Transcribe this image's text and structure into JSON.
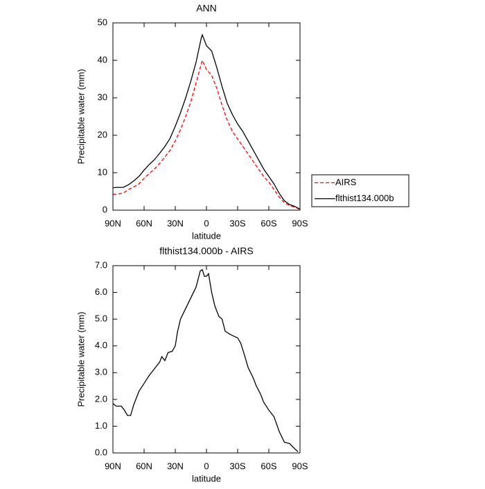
{
  "chart_data": [
    {
      "type": "line",
      "title": "ANN",
      "x_label": "latitude",
      "y_label": "Precipitable water (mm)",
      "x": [
        90,
        85,
        80,
        75,
        70,
        65,
        60,
        55,
        50,
        45,
        40,
        35,
        30,
        25,
        20,
        15,
        10,
        5,
        4,
        0,
        -5,
        -10,
        -15,
        -20,
        -25,
        -30,
        -35,
        -40,
        -45,
        -50,
        -55,
        -60,
        -65,
        -70,
        -75,
        -80,
        -85,
        -90
      ],
      "series": [
        {
          "name": "AIRS",
          "color": "#ff0000",
          "dash": true,
          "values": [
            4.2,
            4.3,
            4.6,
            5.5,
            6.2,
            7.0,
            8.5,
            9.8,
            11.0,
            12.5,
            14.2,
            16.0,
            18.5,
            21.5,
            25,
            29,
            34,
            39,
            40,
            37.5,
            36,
            32.5,
            28,
            24,
            21,
            19,
            17,
            15,
            13,
            11,
            9,
            7.5,
            5.5,
            3.5,
            2,
            1.2,
            0.8,
            0.2
          ]
        },
        {
          "name": "flthist134.000b",
          "color": "#000000",
          "dash": false,
          "values": [
            6.0,
            6.1,
            6.1,
            6.8,
            7.8,
            9.0,
            10.7,
            12.2,
            13.5,
            15.2,
            17.0,
            19.2,
            22.4,
            26,
            30,
            34.5,
            39.5,
            46,
            46.8,
            43.9,
            42.5,
            38,
            33,
            28.5,
            25.5,
            23,
            21,
            18.5,
            16,
            13.5,
            11,
            9,
            7,
            4.5,
            2.5,
            1.5,
            1.0,
            0.3
          ]
        }
      ],
      "xlim": [
        90,
        -90
      ],
      "xticks": [
        {
          "value": 90,
          "label": "90N"
        },
        {
          "value": 60,
          "label": "60N"
        },
        {
          "value": 30,
          "label": "30N"
        },
        0,
        {
          "value": -30,
          "label": "30S"
        },
        {
          "value": -60,
          "label": "60S"
        },
        {
          "value": -90,
          "label": "90S"
        }
      ],
      "ylim": [
        0,
        50
      ],
      "yticks": [
        0,
        10,
        20,
        30,
        40,
        50
      ],
      "legend": "right"
    },
    {
      "type": "line",
      "title": "flthist134.000b - AIRS",
      "x_label": "latitude",
      "y_label": "Precipitable water (mm)",
      "x": [
        90,
        87,
        82,
        79,
        76,
        73,
        70,
        65,
        60,
        55,
        50,
        45,
        43,
        40,
        37,
        33,
        30,
        28,
        25,
        20,
        15,
        10,
        6,
        4,
        2,
        0,
        -2,
        -5,
        -8,
        -12,
        -15,
        -18,
        -22,
        -27,
        -30,
        -33,
        -37,
        -40,
        -45,
        -48,
        -52,
        -55,
        -60,
        -65,
        -70,
        -75,
        -80,
        -85,
        -88
      ],
      "values": [
        1.85,
        1.75,
        1.75,
        1.6,
        1.4,
        1.4,
        1.8,
        2.3,
        2.6,
        2.9,
        3.15,
        3.4,
        3.6,
        3.45,
        3.75,
        3.8,
        4.0,
        4.5,
        5.0,
        5.4,
        5.8,
        6.2,
        6.8,
        6.85,
        6.6,
        6.6,
        6.7,
        6.0,
        5.5,
        5.1,
        5.0,
        4.55,
        4.45,
        4.35,
        4.3,
        4.1,
        3.6,
        3.2,
        2.8,
        2.5,
        2.2,
        1.9,
        1.6,
        1.35,
        0.8,
        0.4,
        0.35,
        0.15,
        0.05
      ],
      "color": "#000000",
      "xlim": [
        90,
        -90
      ],
      "xticks": [
        {
          "value": 90,
          "label": "90N"
        },
        {
          "value": 60,
          "label": "60N"
        },
        {
          "value": 30,
          "label": "30N"
        },
        0,
        {
          "value": -30,
          "label": "30S"
        },
        {
          "value": -60,
          "label": "60S"
        },
        {
          "value": -90,
          "label": "90S"
        }
      ],
      "ylim": [
        0,
        7
      ],
      "yticks": [
        {
          "value": 0,
          "label": "0.0"
        },
        {
          "value": 1,
          "label": "1.0"
        },
        {
          "value": 2,
          "label": "2.0"
        },
        {
          "value": 3,
          "label": "3.0"
        },
        {
          "value": 4,
          "label": "4.0"
        },
        {
          "value": 5,
          "label": "5.0"
        },
        {
          "value": 6,
          "label": "6.0"
        },
        {
          "value": 7,
          "label": "7.0"
        }
      ]
    }
  ]
}
